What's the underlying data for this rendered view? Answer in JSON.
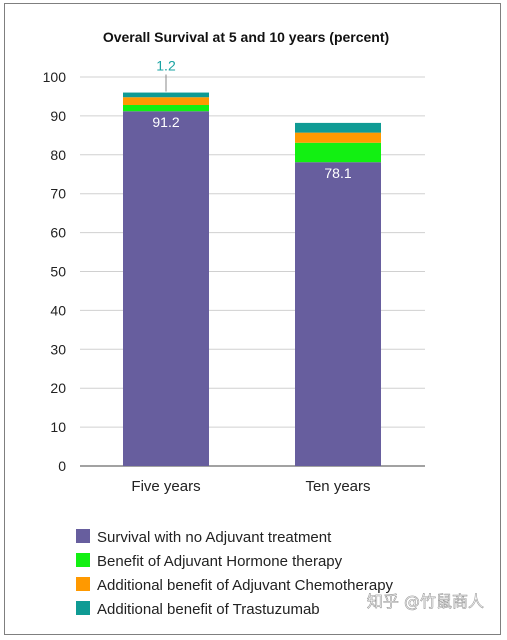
{
  "watermark": "知乎 @竹鼠商人",
  "chart_data": {
    "type": "bar",
    "stacked": true,
    "title": "Overall Survival at 5 and 10 years (percent)",
    "xlabel": "",
    "ylabel": "",
    "ylim": [
      0,
      100
    ],
    "yticks": [
      0,
      10,
      20,
      30,
      40,
      50,
      60,
      70,
      80,
      90,
      100
    ],
    "grid": true,
    "legend_position": "bottom",
    "categories": [
      "Five years",
      "Ten years"
    ],
    "series": [
      {
        "name": "Survival with no Adjuvant treatment",
        "color": "#675e9e",
        "values": [
          91.2,
          78.1
        ]
      },
      {
        "name": "Benefit of Adjuvant Hormone therapy",
        "color": "#12f012",
        "values": [
          1.6,
          5.0
        ]
      },
      {
        "name": "Additional benefit of Adjuvant Chemotherapy",
        "color": "#ff9900",
        "values": [
          2.0,
          2.6
        ]
      },
      {
        "name": "Additional benefit of Trastuzumab",
        "color": "#0f9b94",
        "values": [
          1.2,
          2.5
        ]
      }
    ],
    "data_labels": [
      {
        "category": 0,
        "series": 0,
        "text": "91.2"
      },
      {
        "category": 1,
        "series": 0,
        "text": "78.1"
      },
      {
        "category": 0,
        "series": 3,
        "text": "1.2"
      }
    ]
  }
}
